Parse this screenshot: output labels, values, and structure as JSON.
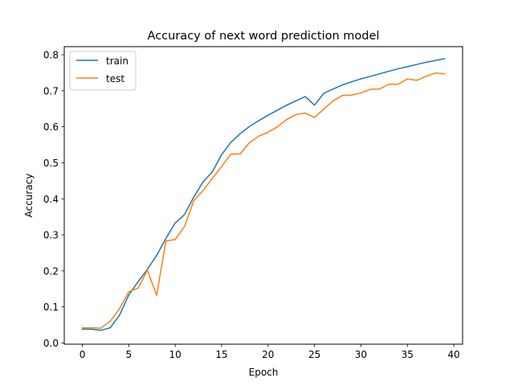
{
  "chart_data": {
    "type": "line",
    "title": "Accuracy of next word prediction model",
    "xlabel": "Epoch",
    "ylabel": "Accuracy",
    "xlim": [
      -1.95,
      40.95
    ],
    "ylim": [
      -0.0035,
      0.8225
    ],
    "xticks": [
      0,
      5,
      10,
      15,
      20,
      25,
      30,
      35,
      40
    ],
    "yticks": [
      0.0,
      0.1,
      0.2,
      0.3,
      0.4,
      0.5,
      0.6,
      0.7,
      0.8
    ],
    "xtick_labels": [
      "0",
      "5",
      "10",
      "15",
      "20",
      "25",
      "30",
      "35",
      "40"
    ],
    "ytick_labels": [
      "0.0",
      "0.1",
      "0.2",
      "0.3",
      "0.4",
      "0.5",
      "0.6",
      "0.7",
      "0.8"
    ],
    "grid": false,
    "legend_position": "top-left",
    "x": [
      0,
      1,
      2,
      3,
      4,
      5,
      6,
      7,
      8,
      9,
      10,
      11,
      12,
      13,
      14,
      15,
      16,
      17,
      18,
      19,
      20,
      21,
      22,
      23,
      24,
      25,
      26,
      27,
      28,
      29,
      30,
      31,
      32,
      33,
      34,
      35,
      36,
      37,
      38,
      39
    ],
    "series": [
      {
        "name": "train",
        "color": "#1f77b4",
        "values": [
          0.038,
          0.038,
          0.035,
          0.042,
          0.077,
          0.133,
          0.17,
          0.204,
          0.243,
          0.29,
          0.333,
          0.356,
          0.405,
          0.447,
          0.475,
          0.523,
          0.557,
          0.581,
          0.601,
          0.617,
          0.632,
          0.646,
          0.66,
          0.672,
          0.684,
          0.66,
          0.693,
          0.705,
          0.716,
          0.725,
          0.733,
          0.74,
          0.747,
          0.754,
          0.761,
          0.767,
          0.773,
          0.779,
          0.784,
          0.789
        ]
      },
      {
        "name": "test",
        "color": "#ff7f0e",
        "values": [
          0.042,
          0.042,
          0.041,
          0.06,
          0.095,
          0.142,
          0.152,
          0.202,
          0.132,
          0.283,
          0.287,
          0.323,
          0.395,
          0.423,
          0.457,
          0.49,
          0.524,
          0.525,
          0.556,
          0.574,
          0.585,
          0.6,
          0.62,
          0.634,
          0.638,
          0.626,
          0.649,
          0.672,
          0.687,
          0.688,
          0.694,
          0.704,
          0.705,
          0.718,
          0.718,
          0.733,
          0.729,
          0.74,
          0.749,
          0.747
        ]
      }
    ]
  }
}
